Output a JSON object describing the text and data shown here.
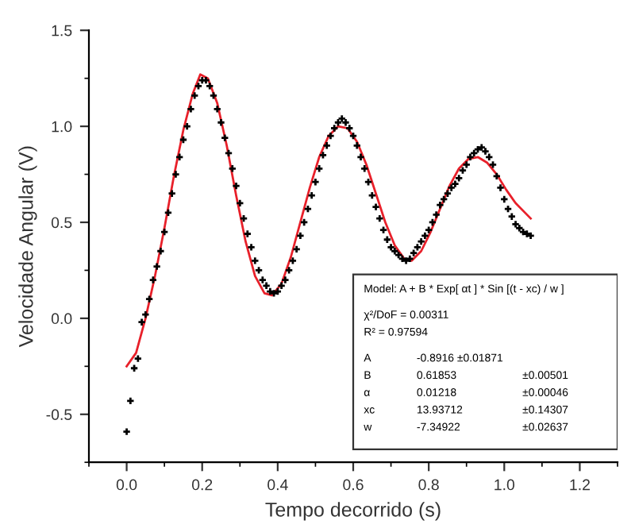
{
  "chart_data": {
    "type": "scatter",
    "xlabel": "Tempo decorrido (s)",
    "ylabel": "Velocidade Angular (V)",
    "xlim": [
      -0.1,
      1.3
    ],
    "ylim": [
      -0.75,
      1.5
    ],
    "xticks": [
      {
        "value": 0,
        "label": "0.0"
      },
      0.2,
      0.4,
      0.6,
      0.8,
      {
        "value": 1,
        "label": "1.0"
      },
      1.2
    ],
    "yticks": [
      {
        "value": -0.5,
        "label": "-0.5"
      },
      {
        "value": 0,
        "label": "0.0"
      },
      0.5,
      {
        "value": 1,
        "label": "1.0"
      },
      1.5
    ],
    "grid": false,
    "legend": false,
    "marker": "cross",
    "series": [
      {
        "color": "#000000",
        "x": [
          0.0,
          0.01,
          0.02,
          0.03,
          0.04,
          0.05,
          0.06,
          0.07,
          0.08,
          0.09,
          0.1,
          0.11,
          0.12,
          0.13,
          0.14,
          0.15,
          0.16,
          0.17,
          0.18,
          0.19,
          0.2,
          0.21,
          0.22,
          0.23,
          0.24,
          0.25,
          0.26,
          0.27,
          0.28,
          0.29,
          0.3,
          0.31,
          0.32,
          0.33,
          0.34,
          0.35,
          0.36,
          0.37,
          0.38,
          0.39,
          0.4,
          0.41,
          0.42,
          0.43,
          0.44,
          0.45,
          0.46,
          0.47,
          0.48,
          0.49,
          0.5,
          0.51,
          0.52,
          0.53,
          0.54,
          0.55,
          0.56,
          0.57,
          0.58,
          0.59,
          0.6,
          0.61,
          0.62,
          0.63,
          0.64,
          0.65,
          0.66,
          0.67,
          0.68,
          0.69,
          0.7,
          0.71,
          0.72,
          0.73,
          0.74,
          0.75,
          0.76,
          0.77,
          0.78,
          0.79,
          0.8,
          0.81,
          0.82,
          0.83,
          0.84,
          0.85,
          0.86,
          0.87,
          0.88,
          0.89,
          0.9,
          0.91,
          0.92,
          0.93,
          0.94,
          0.95,
          0.96,
          0.97,
          0.98,
          0.99,
          1.0,
          1.01,
          1.02,
          1.03,
          1.04,
          1.05,
          1.06,
          1.07
        ],
        "values": [
          -0.59,
          -0.43,
          -0.26,
          -0.21,
          -0.02,
          0.02,
          0.1,
          0.2,
          0.27,
          0.35,
          0.45,
          0.55,
          0.65,
          0.75,
          0.84,
          0.93,
          1.0,
          1.09,
          1.16,
          1.21,
          1.24,
          1.24,
          1.21,
          1.16,
          1.09,
          1.02,
          0.94,
          0.86,
          0.78,
          0.69,
          0.6,
          0.52,
          0.44,
          0.37,
          0.3,
          0.25,
          0.2,
          0.17,
          0.14,
          0.13,
          0.14,
          0.17,
          0.2,
          0.25,
          0.3,
          0.36,
          0.43,
          0.5,
          0.57,
          0.64,
          0.71,
          0.78,
          0.85,
          0.9,
          0.95,
          0.99,
          1.02,
          1.04,
          1.02,
          0.99,
          0.95,
          0.9,
          0.84,
          0.78,
          0.71,
          0.64,
          0.58,
          0.52,
          0.46,
          0.41,
          0.37,
          0.35,
          0.33,
          0.31,
          0.3,
          0.31,
          0.34,
          0.37,
          0.4,
          0.43,
          0.46,
          0.5,
          0.54,
          0.59,
          0.62,
          0.65,
          0.68,
          0.7,
          0.73,
          0.77,
          0.8,
          0.84,
          0.86,
          0.88,
          0.89,
          0.87,
          0.84,
          0.8,
          0.74,
          0.68,
          0.62,
          0.57,
          0.53,
          0.49,
          0.47,
          0.45,
          0.44,
          0.43
        ]
      },
      {
        "type": "line",
        "color": "#e8202a",
        "marker": "none",
        "line_style": "solid",
        "x": [
          0.0,
          0.025,
          0.05,
          0.075,
          0.1,
          0.125,
          0.15,
          0.175,
          0.195,
          0.215,
          0.24,
          0.265,
          0.29,
          0.315,
          0.34,
          0.365,
          0.385,
          0.41,
          0.435,
          0.46,
          0.485,
          0.51,
          0.535,
          0.56,
          0.585,
          0.61,
          0.635,
          0.66,
          0.685,
          0.71,
          0.735,
          0.755,
          0.78,
          0.805,
          0.83,
          0.855,
          0.88,
          0.905,
          0.93,
          0.955,
          0.98,
          1.005,
          1.03,
          1.055,
          1.07
        ],
        "values": [
          -0.25,
          -0.18,
          0.0,
          0.22,
          0.47,
          0.74,
          0.98,
          1.17,
          1.27,
          1.25,
          1.12,
          0.9,
          0.64,
          0.4,
          0.22,
          0.13,
          0.12,
          0.18,
          0.32,
          0.5,
          0.68,
          0.84,
          0.95,
          1.0,
          0.99,
          0.92,
          0.8,
          0.65,
          0.5,
          0.38,
          0.31,
          0.3,
          0.35,
          0.45,
          0.57,
          0.69,
          0.78,
          0.83,
          0.84,
          0.81,
          0.75,
          0.67,
          0.6,
          0.55,
          0.52
        ]
      }
    ],
    "annotations": [
      "Model: A + B * Exp[ αt ] * Sin [(t - xc) / w ]",
      "χ²/DoF = 0.00311",
      "R² = 0.97594",
      "A\t-0.8916 ±0.01871",
      "B\t0.61853\t±0.00501",
      "α\t0.01218\t±0.00046",
      "xc\t13.93712\t±0.14307",
      "w\t-7.34922\t±0.02637"
    ]
  }
}
